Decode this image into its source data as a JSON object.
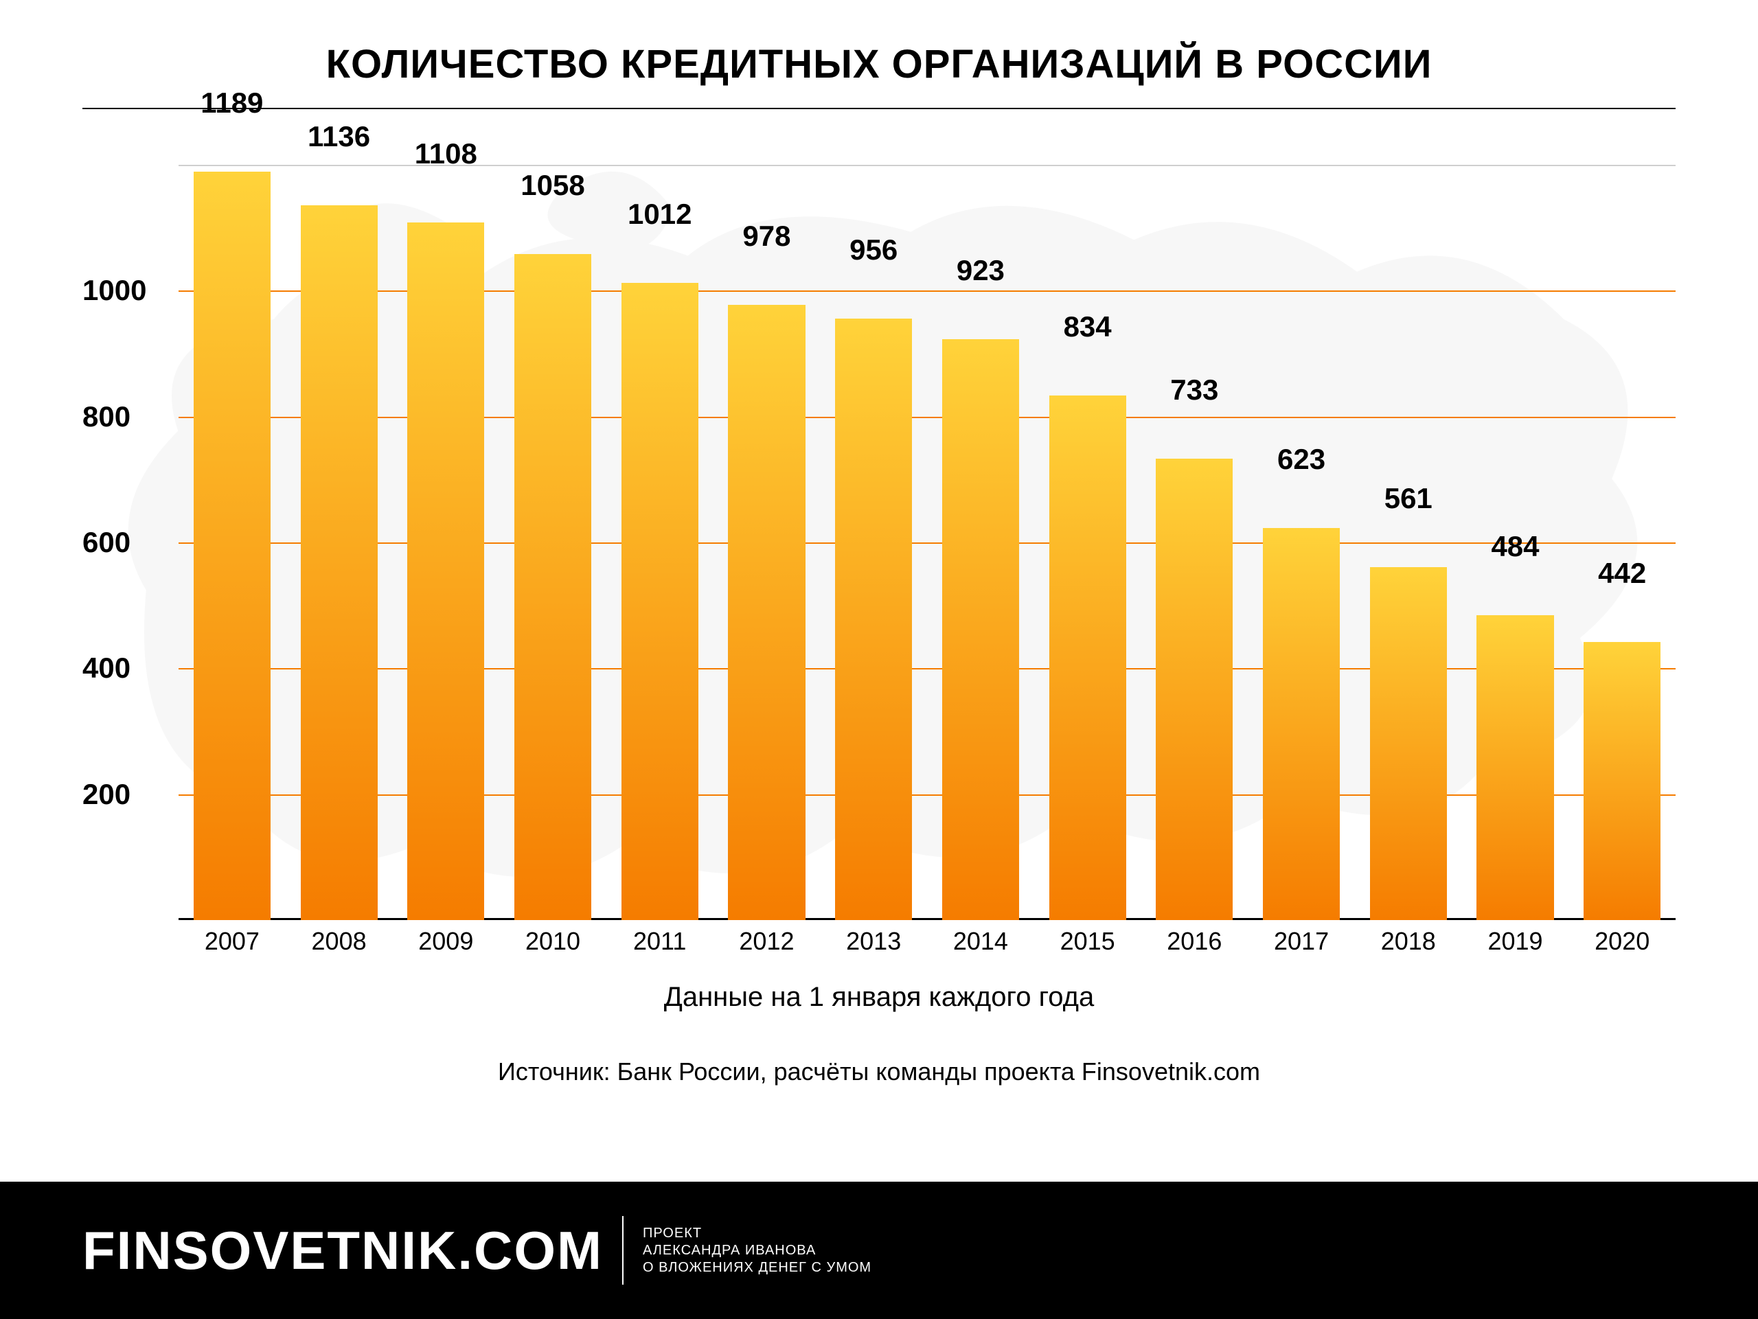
{
  "title": "КОЛИЧЕСТВО КРЕДИТНЫХ ОРГАНИЗАЦИЙ В РОССИИ",
  "chart": {
    "type": "bar",
    "categories": [
      "2007",
      "2008",
      "2009",
      "2010",
      "2011",
      "2012",
      "2013",
      "2014",
      "2015",
      "2016",
      "2017",
      "2018",
      "2019",
      "2020"
    ],
    "values": [
      1189,
      1136,
      1108,
      1058,
      1012,
      978,
      956,
      923,
      834,
      733,
      623,
      561,
      484,
      442
    ],
    "bar_gradient_top": "#ffd33a",
    "bar_gradient_bottom": "#f57c00",
    "bar_width_ratio": 0.72,
    "ylim": [
      0,
      1200
    ],
    "yticks": [
      200,
      400,
      600,
      800,
      1000
    ],
    "grid_color": "#f57c00",
    "grid_color_top": "#cfcfcf",
    "baseline_color": "#000000",
    "value_label_fontsize": 42,
    "value_label_weight": 700,
    "x_label_fontsize": 36,
    "y_label_fontsize": 42,
    "y_label_weight": 700,
    "background_color": "#ffffff",
    "map_silhouette_color": "#e6e6e6"
  },
  "subtitle": "Данные на 1 января каждого года",
  "subtitle_fontsize": 40,
  "source": "Источник: Банк России, расчёты команды проекта Finsovetnik.com",
  "source_fontsize": 36,
  "title_fontsize": 58,
  "footer": {
    "brand": "FINSOVETNIK.COM",
    "brand_fontsize": 78,
    "tagline_lines": [
      "ПРОЕКТ",
      "АЛЕКСАНДРА ИВАНОВА",
      "О ВЛОЖЕНИЯХ ДЕНЕГ С УМОМ"
    ],
    "tagline_fontsize": 20,
    "background_color": "#000000",
    "text_color": "#ffffff"
  }
}
